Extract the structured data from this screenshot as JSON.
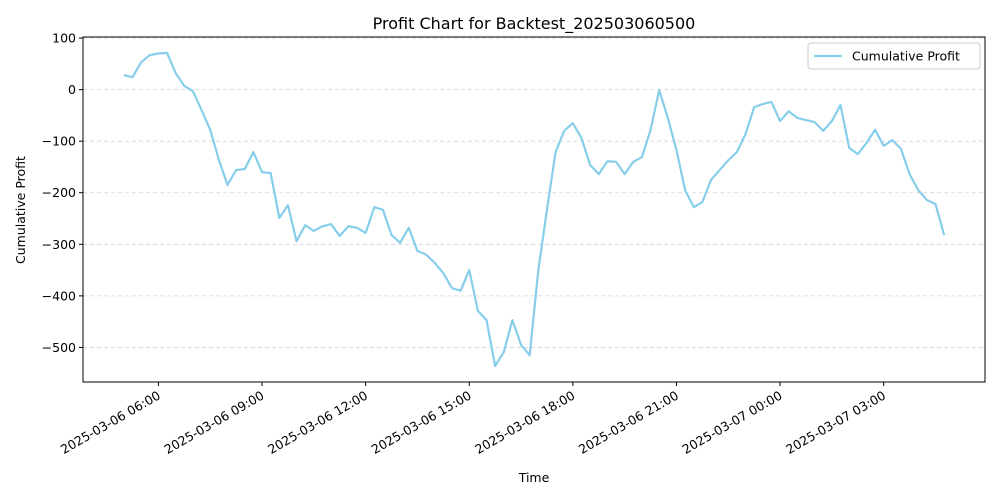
{
  "chart_data": {
    "type": "line",
    "title": "Profit Chart for Backtest_202503060500",
    "xlabel": "Time",
    "ylabel": "Cumulative Profit",
    "x": [
      "2025-03-06 05:00",
      "2025-03-06 05:15",
      "2025-03-06 05:30",
      "2025-03-06 05:45",
      "2025-03-06 06:00",
      "2025-03-06 06:15",
      "2025-03-06 06:30",
      "2025-03-06 06:45",
      "2025-03-06 07:00",
      "2025-03-06 07:15",
      "2025-03-06 07:30",
      "2025-03-06 07:45",
      "2025-03-06 08:00",
      "2025-03-06 08:15",
      "2025-03-06 08:30",
      "2025-03-06 08:45",
      "2025-03-06 09:00",
      "2025-03-06 09:15",
      "2025-03-06 09:30",
      "2025-03-06 09:45",
      "2025-03-06 10:00",
      "2025-03-06 10:15",
      "2025-03-06 10:30",
      "2025-03-06 10:45",
      "2025-03-06 11:00",
      "2025-03-06 11:15",
      "2025-03-06 11:30",
      "2025-03-06 11:45",
      "2025-03-06 12:00",
      "2025-03-06 12:15",
      "2025-03-06 12:30",
      "2025-03-06 12:45",
      "2025-03-06 13:00",
      "2025-03-06 13:15",
      "2025-03-06 13:30",
      "2025-03-06 13:45",
      "2025-03-06 14:00",
      "2025-03-06 14:15",
      "2025-03-06 14:30",
      "2025-03-06 14:45",
      "2025-03-06 15:00",
      "2025-03-06 15:15",
      "2025-03-06 15:30",
      "2025-03-06 15:45",
      "2025-03-06 16:00",
      "2025-03-06 16:15",
      "2025-03-06 16:30",
      "2025-03-06 16:45",
      "2025-03-06 17:00",
      "2025-03-06 17:15",
      "2025-03-06 17:30",
      "2025-03-06 17:45",
      "2025-03-06 18:00",
      "2025-03-06 18:15",
      "2025-03-06 18:30",
      "2025-03-06 18:45",
      "2025-03-06 19:00",
      "2025-03-06 19:15",
      "2025-03-06 19:30",
      "2025-03-06 19:45",
      "2025-03-06 20:00",
      "2025-03-06 20:15",
      "2025-03-06 20:30",
      "2025-03-06 20:45",
      "2025-03-06 21:00",
      "2025-03-06 21:15",
      "2025-03-06 21:30",
      "2025-03-06 21:45",
      "2025-03-06 22:00",
      "2025-03-06 22:15",
      "2025-03-06 22:30",
      "2025-03-06 22:45",
      "2025-03-06 23:00",
      "2025-03-06 23:15",
      "2025-03-06 23:30",
      "2025-03-06 23:45",
      "2025-03-07 00:00",
      "2025-03-07 00:15",
      "2025-03-07 00:30",
      "2025-03-07 00:45",
      "2025-03-07 01:00",
      "2025-03-07 01:15",
      "2025-03-07 01:30",
      "2025-03-07 01:45",
      "2025-03-07 02:00",
      "2025-03-07 02:15",
      "2025-03-07 02:30",
      "2025-03-07 02:45",
      "2025-03-07 03:00",
      "2025-03-07 03:15",
      "2025-03-07 03:30",
      "2025-03-07 03:45",
      "2025-03-07 04:00",
      "2025-03-07 04:15",
      "2025-03-07 04:30",
      "2025-03-07 04:45"
    ],
    "series": [
      {
        "name": "Cumulative Profit",
        "color": "#87ceeb",
        "values": [
          28,
          24,
          53,
          67,
          70,
          71,
          32,
          7,
          -3,
          -40,
          -78,
          -136,
          -185,
          -156,
          -154,
          -121,
          -160,
          -162,
          -249,
          -224,
          -294,
          -263,
          -274,
          -265,
          -261,
          -284,
          -265,
          -268,
          -278,
          -228,
          -233,
          -282,
          -297,
          -268,
          -313,
          -320,
          -336,
          -356,
          -385,
          -390,
          -350,
          -429,
          -447,
          -536,
          -509,
          -447,
          -495,
          -515,
          -350,
          -233,
          -121,
          -80,
          -65,
          -94,
          -146,
          -164,
          -139,
          -140,
          -164,
          -140,
          -131,
          -78,
          -1,
          -55,
          -117,
          -195,
          -228,
          -218,
          -175,
          -156,
          -137,
          -121,
          -86,
          -34,
          -28,
          -24,
          -61,
          -42,
          -55,
          -59,
          -63,
          -80,
          -61,
          -30,
          -113,
          -125,
          -104,
          -78,
          -109,
          -98,
          -115,
          -164,
          -195,
          -214,
          -222,
          -282
        ]
      }
    ],
    "xlim": [
      "2025-03-06 03:49",
      "2025-03-07 05:56"
    ],
    "xticks": [
      "2025-03-06 06:00",
      "2025-03-06 09:00",
      "2025-03-06 12:00",
      "2025-03-06 15:00",
      "2025-03-06 18:00",
      "2025-03-06 21:00",
      "2025-03-07 00:00",
      "2025-03-07 03:00"
    ],
    "ylim": [
      -567,
      102
    ],
    "yticks": [
      {
        "value": -500,
        "label": "−500"
      },
      {
        "value": -400,
        "label": "−400"
      },
      {
        "value": -300,
        "label": "−300"
      },
      {
        "value": -200,
        "label": "−200"
      },
      {
        "value": -100,
        "label": "−100"
      },
      0,
      100
    ],
    "grid": true,
    "legend": "upper right"
  }
}
